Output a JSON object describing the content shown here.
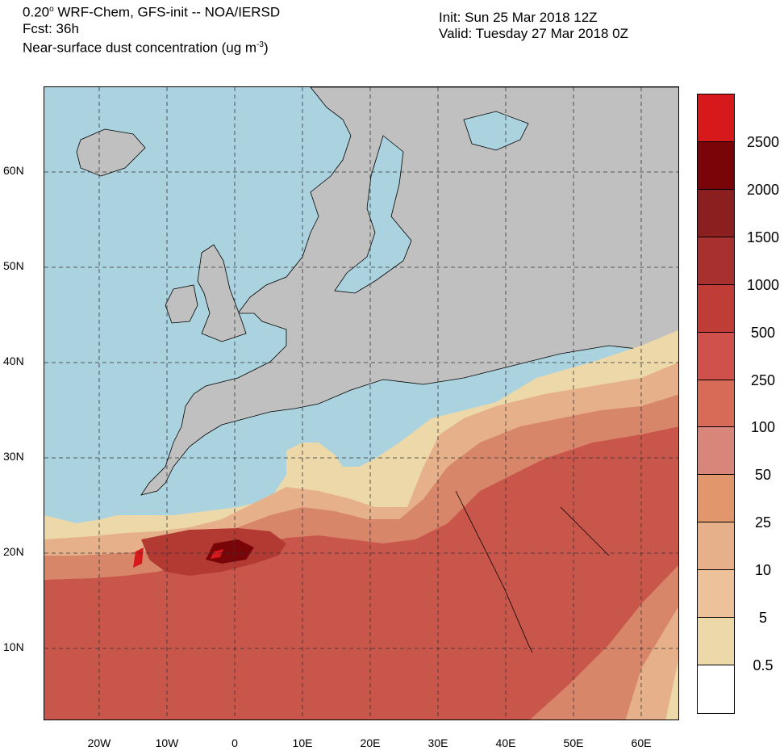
{
  "header": {
    "line1_resolution": "0.20",
    "line1_degree": "o",
    "line1_rest": " WRF-Chem, GFS-init -- NOA/IERSD",
    "line2": "Fcst: 36h",
    "line3_main": "Near-surface dust concentration (ug m",
    "line3_exp": "-3",
    "line3_end": ")",
    "init": "Init: Sun 25 Mar 2018  12Z",
    "valid": "Valid: Tuesday 27 Mar 2018  0Z"
  },
  "axes": {
    "lat_labels": [
      "60N",
      "50N",
      "40N",
      "30N",
      "20N",
      "10N"
    ],
    "lon_labels": [
      "20W",
      "10W",
      "0",
      "10E",
      "20E",
      "30E",
      "40E",
      "50E",
      "60E"
    ]
  },
  "colorbar": {
    "levels": [
      "2500",
      "2000",
      "1500",
      "1000",
      "500",
      "250",
      "100",
      "50",
      "25",
      "10",
      "5",
      "0.5"
    ],
    "colors": [
      "#d7191c",
      "#7a0508",
      "#8b1e1e",
      "#a8302e",
      "#c03c37",
      "#d0504b",
      "#d86a58",
      "#d8867a",
      "#e2966c",
      "#e6b08a",
      "#edc29a",
      "#ecd8a9",
      "#ffffff"
    ]
  },
  "map_colors": {
    "ocean": "#aad3df",
    "land_no_dust": "#c0c0c0"
  }
}
